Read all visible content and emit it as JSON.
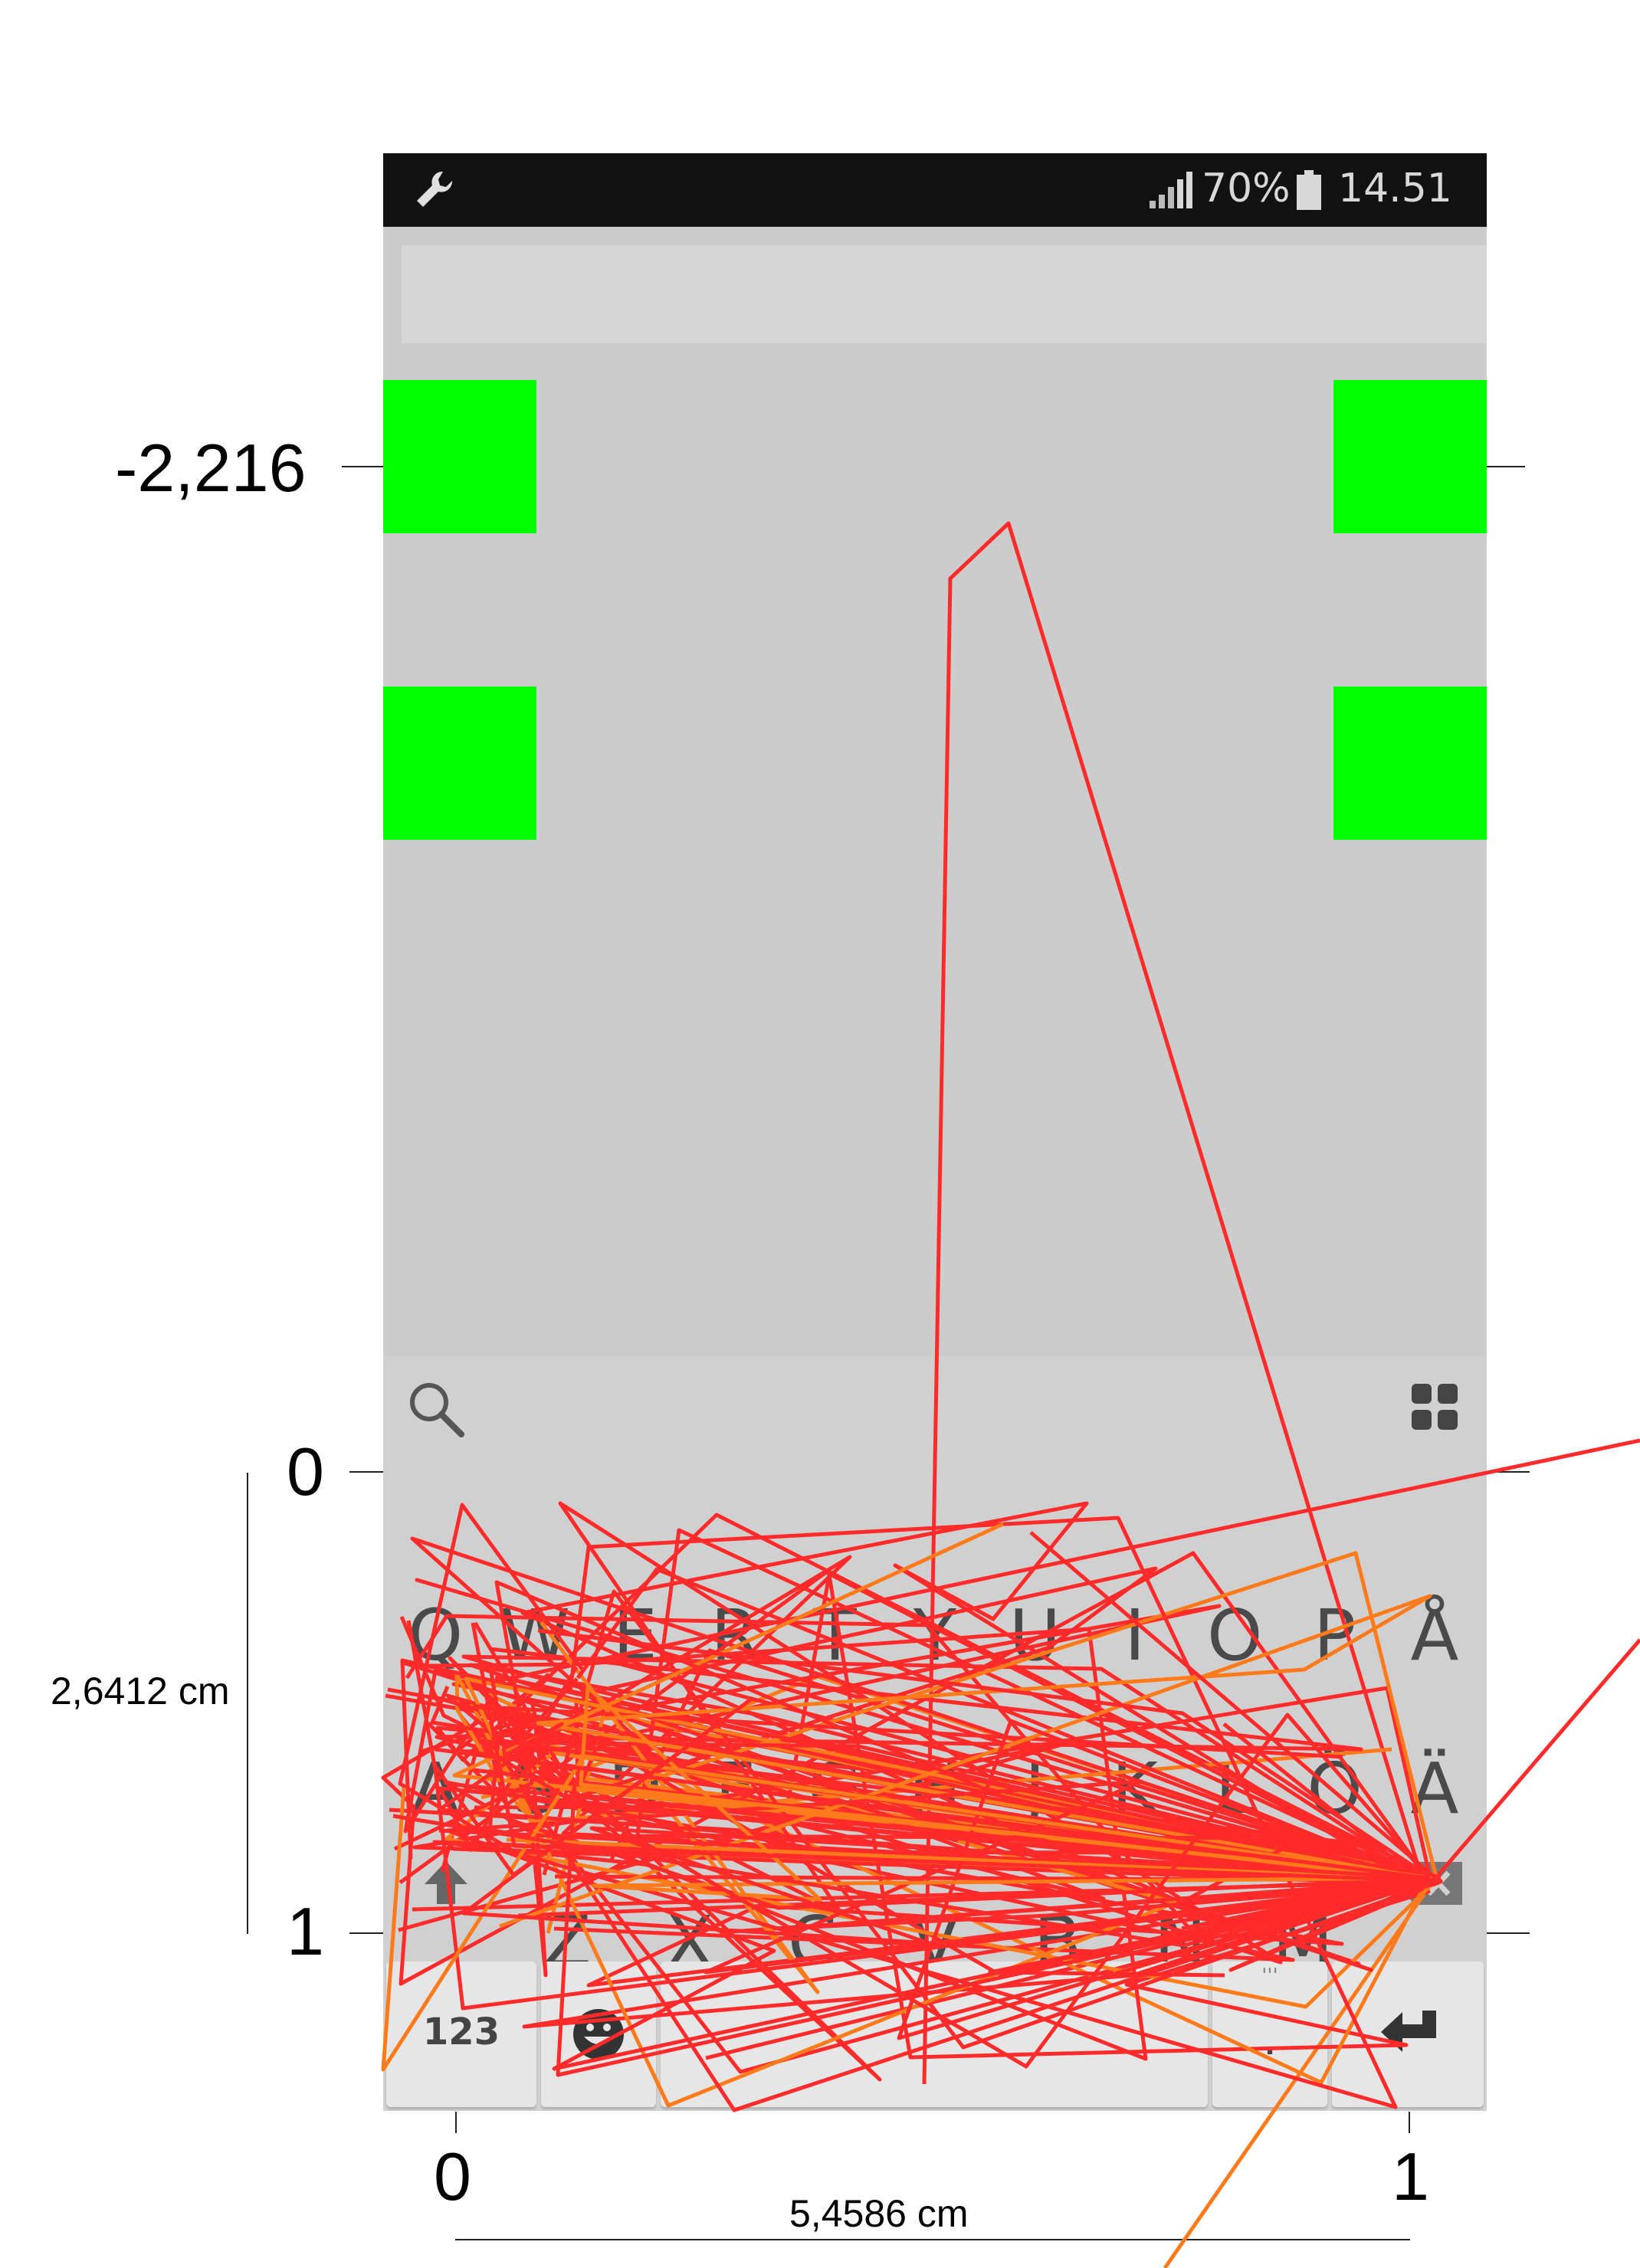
{
  "status_bar": {
    "wrench_icon": "wrench-icon",
    "signal_icon": "signal-icon",
    "battery_text": "70%",
    "battery_icon": "battery-icon",
    "time": "14.51"
  },
  "keyboard": {
    "search_icon": "search-icon",
    "apps_icon": "apps-grid-icon",
    "row1": [
      "Q",
      "W",
      "E",
      "R",
      "T",
      "Y",
      "U",
      "I",
      "O",
      "P",
      "Å"
    ],
    "row2": [
      "A",
      "S",
      "D",
      "F",
      "G",
      "H",
      "J",
      "K",
      "L",
      "Ö",
      "Ä"
    ],
    "row3": [
      "Z",
      "X",
      "C",
      "V",
      "B",
      "N",
      "M"
    ],
    "numbers_label": "123",
    "period_label": ".",
    "extra_label": "'''",
    "shift_icon": "shift-icon",
    "backspace_icon": "backspace-icon",
    "emoji_icon": "emoji-icon",
    "enter_icon": "enter-icon"
  },
  "annotations": {
    "y_top_label": "-2,216",
    "y_zero_label": "0",
    "y_one_label": "1",
    "height_label": "2,6412 cm",
    "x_zero_label": "0",
    "x_one_label": "1",
    "width_label": "5,4586 cm"
  },
  "colors": {
    "target": "#00ff00",
    "trace_primary": "#ff2a2a",
    "trace_secondary": "#ff7a1a"
  }
}
